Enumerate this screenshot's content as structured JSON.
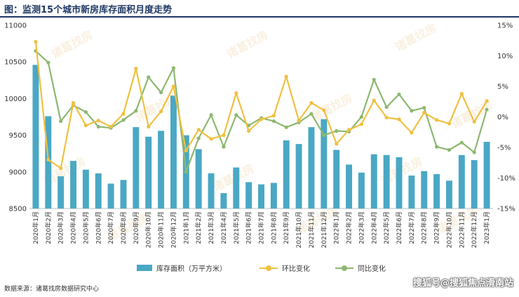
{
  "title": "图：监测15个城市新房库存面积月度走势",
  "source": "数据来源：诸葛找房数据研究中心",
  "corner_watermark": "搜狐号@搜狐焦点滑南站",
  "watermark_text": "诸葛找房",
  "colors": {
    "bar": "#4aa8c4",
    "mom": "#f0c040",
    "yoy": "#8db870",
    "title": "#1f3864"
  },
  "chart_data": {
    "type": "bar",
    "categories": [
      "2020年1月",
      "2020年2月",
      "2020年3月",
      "2020年4月",
      "2020年5月",
      "2020年6月",
      "2020年7月",
      "2020年8月",
      "2020年9月",
      "2020年10月",
      "2020年11月",
      "2020年12月",
      "2021年1月",
      "2021年2月",
      "2021年3月",
      "2021年4月",
      "2021年5月",
      "2021年6月",
      "2021年7月",
      "2021年8月",
      "2021年9月",
      "2021年10月",
      "2021年11月",
      "2021年12月",
      "2022年1月",
      "2022年2月",
      "2022年3月",
      "2022年4月",
      "2022年5月",
      "2022年6月",
      "2022年7月",
      "2022年8月",
      "2022年9月",
      "2022年10月",
      "2022年11月",
      "2022年12月",
      "2023年1月"
    ],
    "series": [
      {
        "name": "库存面积（万平方米）",
        "type": "bar",
        "axis": "left",
        "values": [
          10460,
          9760,
          8940,
          9150,
          9030,
          8980,
          8840,
          8890,
          9610,
          9480,
          9560,
          10040,
          9500,
          9310,
          8980,
          8710,
          9060,
          8860,
          8830,
          8850,
          9430,
          9380,
          9610,
          9720,
          9300,
          9100,
          8990,
          9240,
          9230,
          9200,
          8950,
          9010,
          8970,
          8880,
          9230,
          9160,
          9410
        ]
      },
      {
        "name": "环比变化",
        "type": "line",
        "axis": "right",
        "values": [
          12.3,
          -7.0,
          -8.4,
          2.3,
          -1.4,
          -0.6,
          -1.6,
          0.5,
          7.9,
          -1.6,
          0.9,
          5.0,
          -5.5,
          -2.1,
          -3.6,
          -3.0,
          3.9,
          -2.3,
          -0.4,
          0.2,
          6.6,
          -0.6,
          2.3,
          1.1,
          -4.4,
          -2.1,
          -1.2,
          2.7,
          -0.1,
          -0.4,
          -2.6,
          0.7,
          -0.5,
          -1.1,
          3.8,
          -0.8,
          2.6
        ]
      },
      {
        "name": "同比变化",
        "type": "line",
        "axis": "right",
        "values": [
          10.8,
          8.9,
          -0.7,
          1.9,
          0.8,
          -1.6,
          -1.8,
          -0.5,
          1.0,
          6.5,
          4.0,
          8.0,
          -9.0,
          -3.5,
          0.3,
          -4.9,
          0.3,
          -1.4,
          -0.2,
          -0.7,
          -1.7,
          -0.9,
          0.5,
          -3.0,
          -2.3,
          -2.4,
          0.0,
          6.1,
          1.6,
          3.7,
          1.0,
          1.5,
          -4.9,
          -5.4,
          -4.2,
          -5.8,
          1.2
        ]
      }
    ],
    "y_left": {
      "min": 8500,
      "max": 11000,
      "ticks": [
        "8500",
        "9000",
        "9500",
        "10000",
        "10500",
        "11000"
      ]
    },
    "y_right": {
      "min": -15,
      "max": 15,
      "ticks": [
        "-15%",
        "-10%",
        "-5%",
        "0%",
        "5%",
        "10%",
        "15%"
      ]
    },
    "grid": false,
    "legend_position": "bottom"
  }
}
